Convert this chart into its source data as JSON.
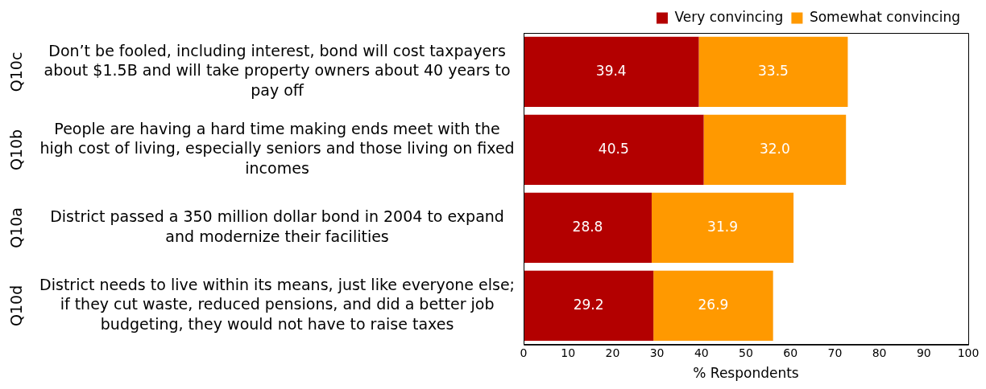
{
  "chart_data": {
    "type": "bar",
    "orientation": "horizontal",
    "stacked": true,
    "xlabel": "% Respondents",
    "categories": [
      "Don’t be fooled, including interest, bond will cost taxpayers about $1.5B and will take property owners about 40 years to pay off",
      "People are having a hard time making ends meet with the high cost of living, especially seniors and those living on fixed incomes",
      "District passed a 350 million dollar bond in 2004 to expand and modernize their facilities",
      "District needs to live within its means, just like everyone else; if they cut waste, reduced pensions, and did a better job budgeting, they would not have to raise taxes"
    ],
    "annotations": [
      "Q10c",
      "Q10b",
      "Q10a",
      "Q10d"
    ],
    "series": [
      {
        "name": "Very convincing",
        "color": "#b30000",
        "values": [
          39.4,
          40.5,
          28.8,
          29.2
        ],
        "value_labels": [
          "39.4",
          "40.5",
          "28.8",
          "29.2"
        ]
      },
      {
        "name": "Somewhat convincing",
        "color": "#ff9900",
        "values": [
          33.5,
          32.0,
          31.9,
          26.9
        ],
        "value_labels": [
          "33.5",
          "32.0",
          "31.9",
          "26.9"
        ]
      }
    ],
    "xlim": [
      0,
      100
    ],
    "xticks": [
      0,
      10,
      20,
      30,
      40,
      50,
      60,
      70,
      80,
      90,
      100
    ],
    "legend": "top right",
    "grid": false
  }
}
